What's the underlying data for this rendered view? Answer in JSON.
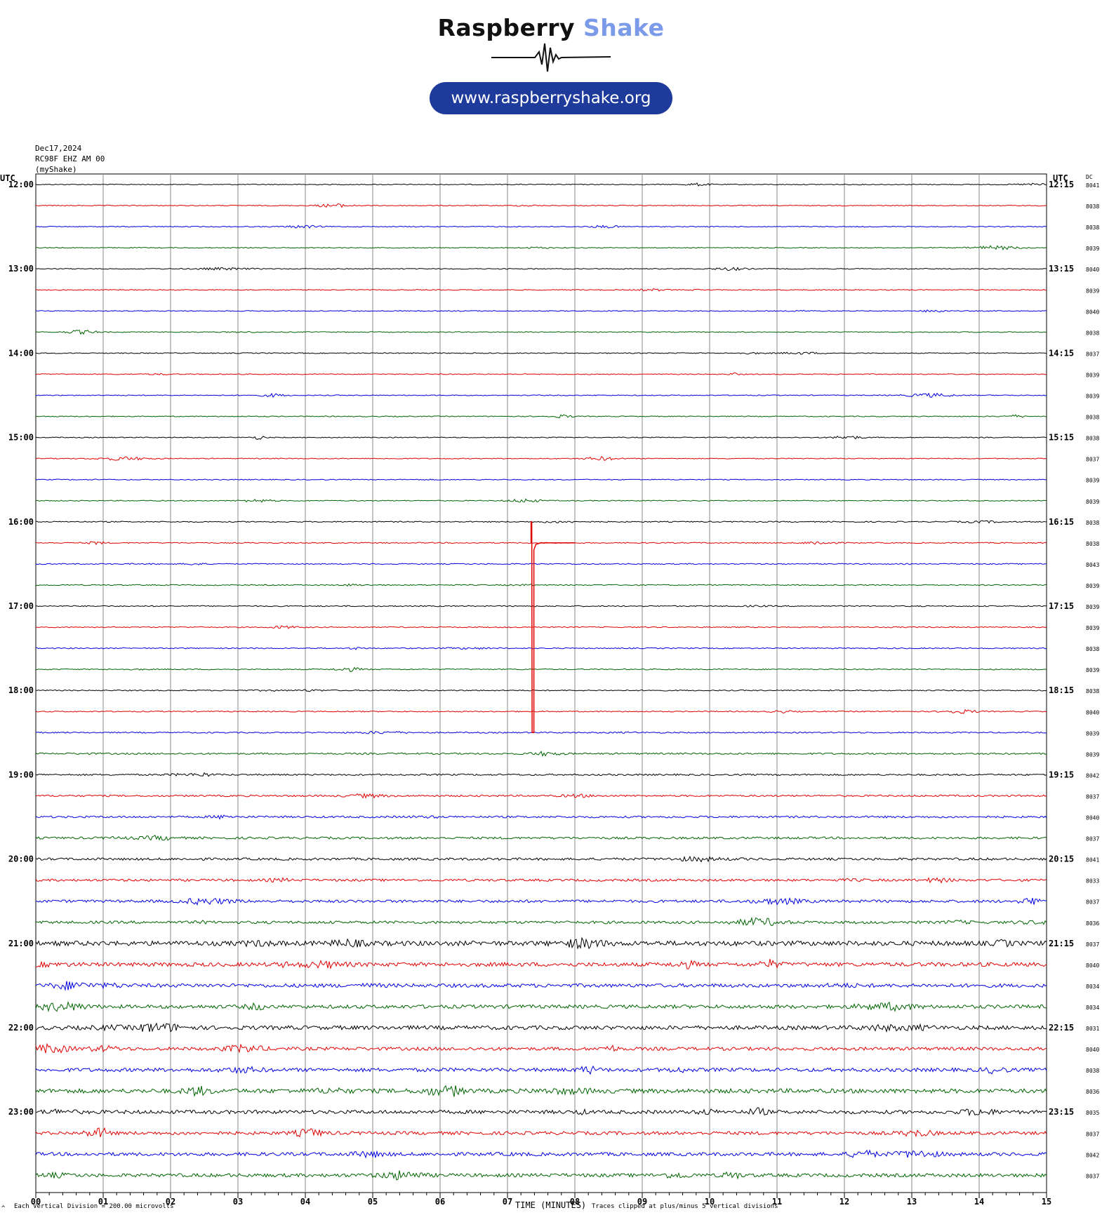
{
  "logo": {
    "brand_word1": "Raspberry",
    "brand_word2": "Shake",
    "url": "www.raspberryshake.org",
    "accent_color": "#7b9ae8",
    "button_color": "#1e3a9b"
  },
  "header": {
    "date": "Dec17,2024",
    "station": "RC98F EHZ AM 00",
    "owner": "(myShake)"
  },
  "chart_data": {
    "type": "line",
    "title": "",
    "xlabel": "TIME (MINUTES)",
    "x_ticks": [
      "00",
      "01",
      "02",
      "03",
      "04",
      "05",
      "06",
      "07",
      "08",
      "09",
      "10",
      "11",
      "12",
      "13",
      "14",
      "15"
    ],
    "xlim": [
      0,
      15
    ],
    "left_axis_title": "UTC",
    "right_axis_title": "UTC",
    "dc_title": "DC",
    "left_hour_labels": [
      "12:00",
      "13:00",
      "14:00",
      "15:00",
      "16:00",
      "17:00",
      "18:00",
      "19:00",
      "20:00",
      "21:00",
      "22:00",
      "23:00"
    ],
    "right_hour_labels": [
      "12:15",
      "13:15",
      "14:15",
      "15:15",
      "16:15",
      "17:15",
      "18:15",
      "19:15",
      "20:15",
      "21:15",
      "22:15",
      "23:15"
    ],
    "trace_colors": [
      "#000000",
      "#e00000",
      "#0000e0",
      "#006400"
    ],
    "dc_offsets": [
      "8041",
      "8038",
      "8038",
      "8039",
      "8040",
      "8039",
      "8040",
      "8038",
      "8037",
      "8039",
      "8039",
      "8038",
      "8038",
      "8037",
      "8039",
      "8039",
      "8038",
      "8038",
      "8043",
      "8039",
      "8039",
      "8039",
      "8038",
      "8039",
      "8038",
      "8040",
      "8039",
      "8039",
      "8042",
      "8037",
      "8040",
      "8037",
      "8041",
      "8033",
      "8037",
      "8036",
      "8037",
      "8040",
      "8034",
      "8034",
      "8031",
      "8040",
      "8038",
      "8036",
      "8035",
      "8037",
      "8042",
      "8037"
    ],
    "noise_level": [
      0.5,
      0.5,
      0.5,
      0.5,
      0.5,
      0.5,
      0.5,
      0.5,
      0.5,
      0.5,
      0.5,
      0.5,
      0.5,
      0.5,
      0.5,
      0.5,
      0.6,
      0.6,
      0.6,
      0.6,
      0.6,
      0.6,
      0.6,
      0.6,
      0.6,
      0.6,
      0.7,
      0.9,
      0.9,
      1.0,
      1.1,
      1.2,
      1.3,
      1.3,
      1.5,
      1.5,
      2.6,
      2.2,
      2.0,
      2.0,
      2.2,
      1.8,
      2.0,
      2.4,
      2.0,
      1.8,
      1.9,
      1.9
    ],
    "clipped_event": {
      "row": 17,
      "minute": 7.35,
      "label": "Traces clipped at plus/minus 5 vertical divisions"
    },
    "scale_note": "Each Vertical Division =  200.00 microvolts",
    "corner_mark": "^"
  }
}
